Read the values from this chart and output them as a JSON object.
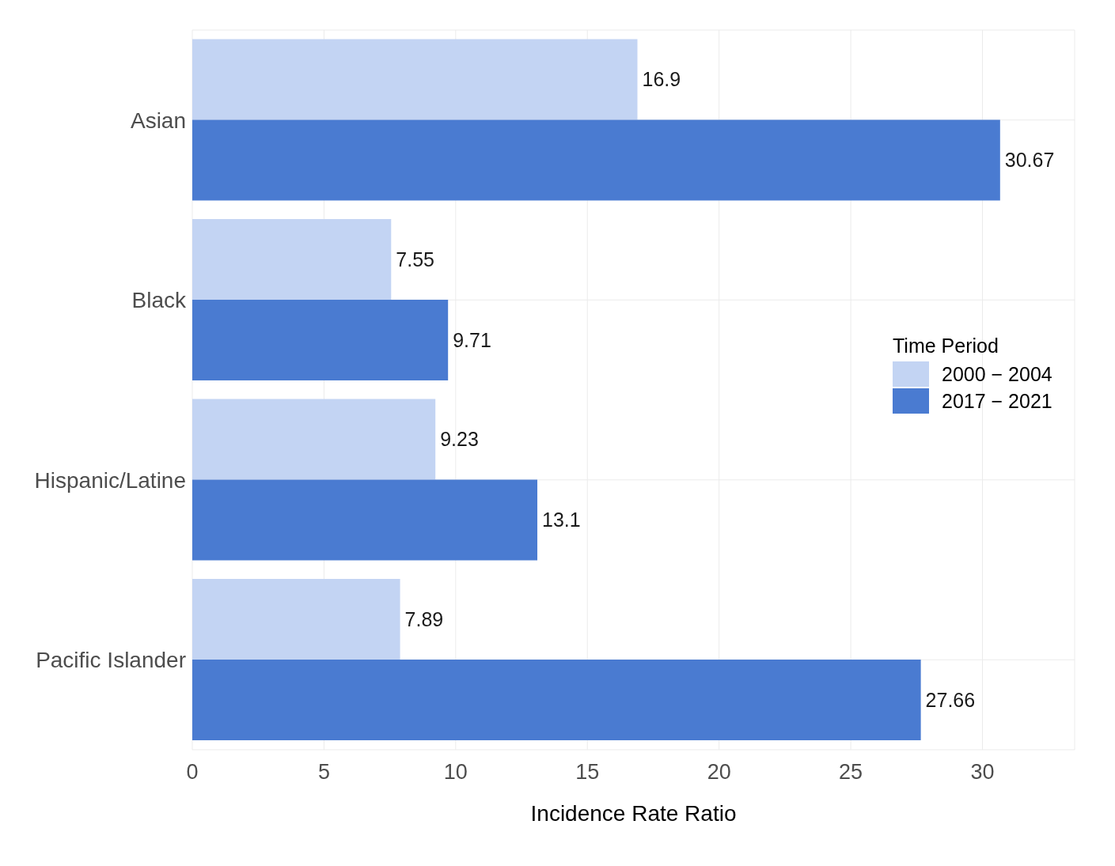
{
  "chart_data": {
    "type": "bar",
    "orientation": "horizontal",
    "xlabel": "Incidence Rate Ratio",
    "legend_title": "Time Period",
    "categories": [
      "Asian",
      "Black",
      "Hispanic/Latine",
      "Pacific Islander"
    ],
    "series": [
      {
        "name": "2000 − 2004",
        "color": "#c3d4f3",
        "values": [
          16.9,
          7.55,
          9.23,
          7.89
        ]
      },
      {
        "name": "2017 − 2021",
        "color": "#4a7bd1",
        "values": [
          30.67,
          9.71,
          13.1,
          27.66
        ]
      }
    ],
    "xlim": [
      0,
      33.5
    ],
    "xticks": [
      0,
      5,
      10,
      15,
      20,
      25,
      30
    ],
    "grid": true,
    "legend": "right",
    "data_labels": true
  }
}
